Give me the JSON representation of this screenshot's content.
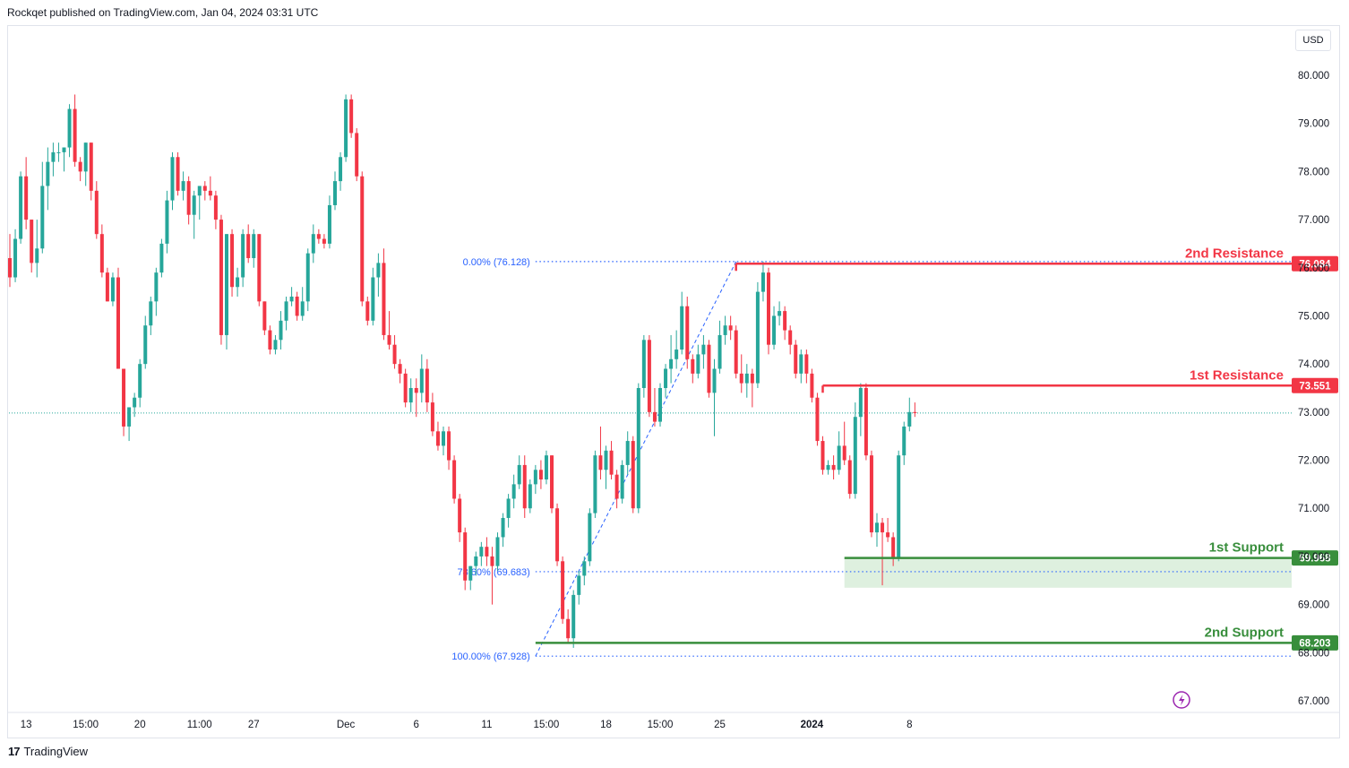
{
  "header": {
    "publisher_text": "Rockqet published on TradingView.com, Jan 04, 2024 03:31 UTC"
  },
  "footer": {
    "brand": "TradingView"
  },
  "toolbar": {
    "currency": "USD"
  },
  "colors": {
    "bull": "#26a69a",
    "bear": "#f23645",
    "resistance": "#f23645",
    "support": "#388e3c",
    "fib": "#2962ff",
    "fib_text": "#2962ff",
    "support_zone": "#c8e6c9"
  },
  "chart_data": {
    "type": "candlestick",
    "title": "",
    "currency": "USD",
    "ylim": [
      66.6,
      80.6
    ],
    "y_ticks": [
      "80.000",
      "79.000",
      "78.000",
      "77.000",
      "76.000",
      "75.000",
      "74.000",
      "73.000",
      "72.000",
      "71.000",
      "70.000",
      "69.000",
      "68.000",
      "67.000"
    ],
    "x_ticks": [
      {
        "label": "13",
        "bar": 3
      },
      {
        "label": "15:00",
        "bar": 14
      },
      {
        "label": "20",
        "bar": 24
      },
      {
        "label": "11:00",
        "bar": 35
      },
      {
        "label": "27",
        "bar": 45
      },
      {
        "label": "Dec",
        "bar": 62
      },
      {
        "label": "6",
        "bar": 75
      },
      {
        "label": "11",
        "bar": 88
      },
      {
        "label": "15:00",
        "bar": 99
      },
      {
        "label": "18",
        "bar": 110
      },
      {
        "label": "15:00",
        "bar": 120
      },
      {
        "label": "25",
        "bar": 131
      },
      {
        "label": "2024",
        "bar": 148,
        "bold": true
      },
      {
        "label": "8",
        "bar": 166
      }
    ],
    "last_price": 72.98,
    "levels": [
      {
        "label": "2nd Resistance",
        "value": 76.084,
        "tag": "76.084",
        "type": "resistance",
        "from_bar": 134
      },
      {
        "label": "1st Resistance",
        "value": 73.551,
        "tag": "73.551",
        "type": "resistance",
        "from_bar": 150
      },
      {
        "label": "1st Support",
        "value": 69.968,
        "tag": "69.968",
        "type": "support",
        "from_bar": 154,
        "zone_low": 69.35
      },
      {
        "label": "2nd Support",
        "value": 68.203,
        "tag": "68.203",
        "type": "support",
        "from_bar": 97
      }
    ],
    "fibonacci": {
      "from_bar": 97,
      "to_bar": 134,
      "levels": [
        {
          "label": "0.00% (76.128)",
          "value": 76.128
        },
        {
          "label": "78.60% (69.683)",
          "value": 69.683
        },
        {
          "label": "100.00% (67.928)",
          "value": 67.928
        }
      ]
    },
    "candles": [
      [
        76.2,
        76.7,
        75.6,
        75.8
      ],
      [
        75.8,
        76.8,
        75.7,
        76.6
      ],
      [
        76.6,
        78.0,
        76.5,
        77.9
      ],
      [
        77.9,
        78.3,
        76.8,
        77.0
      ],
      [
        77.0,
        77.0,
        75.9,
        76.1
      ],
      [
        76.1,
        77.0,
        75.8,
        76.4
      ],
      [
        76.4,
        78.2,
        76.3,
        77.7
      ],
      [
        77.7,
        78.5,
        77.2,
        78.2
      ],
      [
        78.2,
        78.6,
        77.9,
        78.4
      ],
      [
        78.4,
        78.6,
        78.2,
        78.4
      ],
      [
        78.4,
        78.5,
        78.0,
        78.5
      ],
      [
        78.5,
        79.4,
        78.3,
        79.3
      ],
      [
        79.3,
        79.6,
        78.1,
        78.2
      ],
      [
        78.2,
        78.3,
        77.8,
        78.0
      ],
      [
        78.0,
        78.6,
        77.7,
        78.6
      ],
      [
        78.6,
        78.6,
        77.4,
        77.6
      ],
      [
        77.6,
        77.8,
        76.6,
        76.7
      ],
      [
        76.7,
        76.9,
        75.8,
        75.9
      ],
      [
        75.9,
        76.0,
        75.3,
        75.3
      ],
      [
        75.3,
        75.9,
        75.2,
        75.8
      ],
      [
        75.8,
        76.0,
        73.9,
        73.9
      ],
      [
        73.9,
        73.9,
        72.5,
        72.7
      ],
      [
        72.7,
        73.1,
        72.4,
        73.1
      ],
      [
        73.1,
        73.4,
        72.9,
        73.3
      ],
      [
        73.3,
        74.1,
        73.1,
        74.0
      ],
      [
        74.0,
        75.0,
        73.9,
        74.8
      ],
      [
        74.8,
        75.4,
        74.6,
        75.3
      ],
      [
        75.3,
        76.0,
        75.0,
        75.9
      ],
      [
        75.9,
        76.6,
        75.8,
        76.5
      ],
      [
        76.5,
        77.6,
        76.3,
        77.4
      ],
      [
        77.4,
        78.4,
        77.2,
        78.3
      ],
      [
        78.3,
        78.4,
        77.5,
        77.6
      ],
      [
        77.6,
        78.0,
        77.4,
        77.8
      ],
      [
        77.8,
        77.9,
        76.9,
        77.1
      ],
      [
        77.1,
        77.6,
        76.6,
        77.5
      ],
      [
        77.5,
        77.7,
        77.0,
        77.7
      ],
      [
        77.7,
        77.8,
        77.4,
        77.6
      ],
      [
        77.6,
        77.9,
        77.4,
        77.5
      ],
      [
        77.5,
        77.6,
        76.8,
        77.0
      ],
      [
        77.0,
        77.1,
        74.4,
        74.6
      ],
      [
        74.6,
        76.7,
        74.3,
        76.7
      ],
      [
        76.7,
        76.8,
        75.4,
        75.6
      ],
      [
        75.6,
        76.0,
        75.4,
        75.8
      ],
      [
        75.8,
        76.8,
        75.6,
        76.7
      ],
      [
        76.7,
        76.9,
        76.1,
        76.2
      ],
      [
        76.2,
        76.8,
        76.0,
        76.7
      ],
      [
        76.7,
        76.7,
        75.2,
        75.3
      ],
      [
        75.3,
        75.3,
        74.6,
        74.7
      ],
      [
        74.7,
        74.8,
        74.2,
        74.3
      ],
      [
        74.3,
        74.6,
        74.2,
        74.5
      ],
      [
        74.5,
        75.1,
        74.3,
        74.9
      ],
      [
        74.9,
        75.4,
        74.7,
        75.3
      ],
      [
        75.3,
        75.6,
        75.2,
        75.4
      ],
      [
        75.4,
        75.5,
        74.9,
        75.0
      ],
      [
        75.0,
        75.6,
        74.9,
        75.3
      ],
      [
        75.3,
        76.4,
        75.1,
        76.3
      ],
      [
        76.3,
        76.9,
        76.1,
        76.7
      ],
      [
        76.7,
        76.8,
        76.5,
        76.6
      ],
      [
        76.6,
        76.7,
        76.4,
        76.5
      ],
      [
        76.5,
        77.5,
        76.4,
        77.3
      ],
      [
        77.3,
        78.0,
        77.2,
        77.8
      ],
      [
        77.8,
        78.4,
        77.6,
        78.3
      ],
      [
        78.3,
        79.6,
        78.2,
        79.5
      ],
      [
        79.5,
        79.6,
        78.7,
        78.8
      ],
      [
        78.8,
        78.9,
        77.8,
        77.9
      ],
      [
        77.9,
        78.0,
        75.2,
        75.3
      ],
      [
        75.3,
        75.4,
        74.8,
        74.9
      ],
      [
        74.9,
        76.0,
        74.8,
        75.8
      ],
      [
        75.8,
        76.3,
        75.4,
        76.1
      ],
      [
        76.1,
        76.4,
        74.5,
        74.6
      ],
      [
        74.6,
        75.1,
        74.3,
        74.4
      ],
      [
        74.4,
        74.6,
        73.9,
        74.0
      ],
      [
        74.0,
        74.1,
        73.6,
        73.8
      ],
      [
        73.8,
        73.9,
        73.1,
        73.2
      ],
      [
        73.2,
        73.7,
        73.0,
        73.5
      ],
      [
        73.5,
        73.7,
        72.9,
        73.4
      ],
      [
        73.4,
        74.2,
        73.2,
        73.9
      ],
      [
        73.9,
        74.1,
        73.0,
        73.2
      ],
      [
        73.2,
        73.4,
        72.5,
        72.6
      ],
      [
        72.6,
        72.8,
        72.2,
        72.3
      ],
      [
        72.3,
        72.7,
        72.1,
        72.6
      ],
      [
        72.6,
        72.7,
        71.8,
        72.0
      ],
      [
        72.0,
        72.1,
        71.1,
        71.2
      ],
      [
        71.2,
        71.3,
        70.3,
        70.5
      ],
      [
        70.5,
        70.6,
        69.3,
        69.5
      ],
      [
        69.5,
        69.8,
        69.3,
        69.8
      ],
      [
        69.8,
        70.1,
        69.6,
        70.0
      ],
      [
        70.0,
        70.3,
        69.8,
        70.2
      ],
      [
        70.2,
        70.4,
        69.8,
        70.0
      ],
      [
        70.0,
        70.2,
        69.0,
        69.8
      ],
      [
        69.8,
        70.5,
        69.7,
        70.4
      ],
      [
        70.4,
        70.9,
        70.2,
        70.8
      ],
      [
        70.8,
        71.3,
        70.6,
        71.2
      ],
      [
        71.2,
        71.7,
        71.0,
        71.5
      ],
      [
        71.5,
        72.1,
        71.4,
        71.9
      ],
      [
        71.9,
        72.1,
        70.8,
        71.0
      ],
      [
        71.0,
        71.6,
        70.9,
        71.5
      ],
      [
        71.5,
        71.9,
        71.3,
        71.8
      ],
      [
        71.8,
        72.0,
        71.4,
        71.6
      ],
      [
        71.6,
        72.2,
        71.5,
        72.1
      ],
      [
        72.1,
        72.1,
        70.9,
        71.0
      ],
      [
        71.0,
        71.1,
        69.8,
        69.9
      ],
      [
        69.9,
        70.0,
        68.6,
        68.7
      ],
      [
        68.7,
        68.9,
        68.2,
        68.3
      ],
      [
        68.3,
        69.3,
        68.1,
        69.2
      ],
      [
        69.2,
        69.7,
        69.0,
        69.6
      ],
      [
        69.6,
        70.0,
        69.4,
        69.9
      ],
      [
        69.9,
        71.0,
        69.8,
        70.9
      ],
      [
        70.9,
        72.2,
        70.8,
        72.1
      ],
      [
        72.1,
        72.7,
        71.6,
        71.8
      ],
      [
        71.8,
        72.3,
        71.4,
        72.2
      ],
      [
        72.2,
        72.4,
        71.6,
        71.7
      ],
      [
        71.7,
        71.8,
        71.0,
        71.2
      ],
      [
        71.2,
        72.0,
        71.1,
        71.9
      ],
      [
        71.9,
        72.6,
        71.7,
        72.4
      ],
      [
        72.4,
        72.5,
        70.9,
        71.0
      ],
      [
        71.0,
        73.6,
        70.9,
        73.5
      ],
      [
        73.5,
        74.6,
        73.3,
        74.5
      ],
      [
        74.5,
        74.6,
        72.9,
        73.0
      ],
      [
        73.0,
        73.5,
        72.7,
        72.8
      ],
      [
        72.8,
        73.6,
        72.7,
        73.5
      ],
      [
        73.5,
        74.0,
        73.3,
        73.9
      ],
      [
        73.9,
        74.6,
        73.6,
        74.1
      ],
      [
        74.1,
        74.7,
        73.9,
        74.3
      ],
      [
        74.3,
        75.5,
        74.2,
        75.2
      ],
      [
        75.2,
        75.4,
        73.9,
        74.1
      ],
      [
        74.1,
        74.2,
        73.6,
        73.8
      ],
      [
        73.8,
        74.4,
        73.7,
        74.2
      ],
      [
        74.2,
        74.6,
        73.9,
        74.4
      ],
      [
        74.4,
        74.5,
        73.3,
        73.4
      ],
      [
        73.4,
        74.1,
        72.5,
        73.9
      ],
      [
        73.9,
        74.9,
        73.8,
        74.6
      ],
      [
        74.6,
        75.0,
        74.4,
        74.8
      ],
      [
        74.8,
        75.0,
        74.5,
        74.7
      ],
      [
        74.7,
        74.8,
        73.7,
        73.8
      ],
      [
        73.8,
        74.2,
        73.4,
        73.6
      ],
      [
        73.6,
        74.0,
        73.3,
        73.8
      ],
      [
        73.8,
        73.9,
        73.1,
        73.6
      ],
      [
        73.6,
        75.7,
        73.5,
        75.5
      ],
      [
        75.5,
        76.13,
        75.3,
        75.9
      ],
      [
        75.9,
        76.0,
        74.2,
        74.4
      ],
      [
        74.4,
        75.2,
        74.3,
        75.0
      ],
      [
        75.0,
        75.3,
        74.8,
        75.1
      ],
      [
        75.1,
        75.2,
        74.5,
        74.7
      ],
      [
        74.7,
        74.8,
        74.2,
        74.4
      ],
      [
        74.4,
        74.5,
        73.7,
        73.8
      ],
      [
        73.8,
        74.3,
        73.6,
        74.2
      ],
      [
        74.2,
        74.3,
        73.6,
        73.8
      ],
      [
        73.8,
        73.9,
        73.2,
        73.3
      ],
      [
        73.3,
        73.4,
        72.3,
        72.4
      ],
      [
        72.4,
        72.5,
        71.7,
        71.8
      ],
      [
        71.8,
        72.0,
        71.7,
        71.9
      ],
      [
        71.9,
        72.1,
        71.6,
        71.8
      ],
      [
        71.8,
        72.6,
        71.7,
        72.3
      ],
      [
        72.3,
        72.8,
        71.9,
        72.0
      ],
      [
        72.0,
        72.1,
        71.2,
        71.3
      ],
      [
        71.3,
        73.2,
        71.2,
        72.9
      ],
      [
        72.9,
        73.6,
        72.5,
        73.5
      ],
      [
        73.5,
        73.6,
        72.0,
        72.1
      ],
      [
        72.1,
        72.2,
        70.4,
        70.5
      ],
      [
        70.5,
        70.9,
        70.2,
        70.7
      ],
      [
        70.7,
        70.8,
        69.4,
        70.5
      ],
      [
        70.5,
        70.8,
        70.3,
        70.4
      ],
      [
        70.4,
        70.5,
        69.8,
        69.97
      ],
      [
        69.97,
        72.2,
        69.9,
        72.1
      ],
      [
        72.1,
        72.8,
        71.9,
        72.7
      ],
      [
        72.7,
        73.3,
        72.6,
        73.0
      ],
      [
        73.0,
        73.2,
        72.9,
        72.98
      ]
    ]
  }
}
